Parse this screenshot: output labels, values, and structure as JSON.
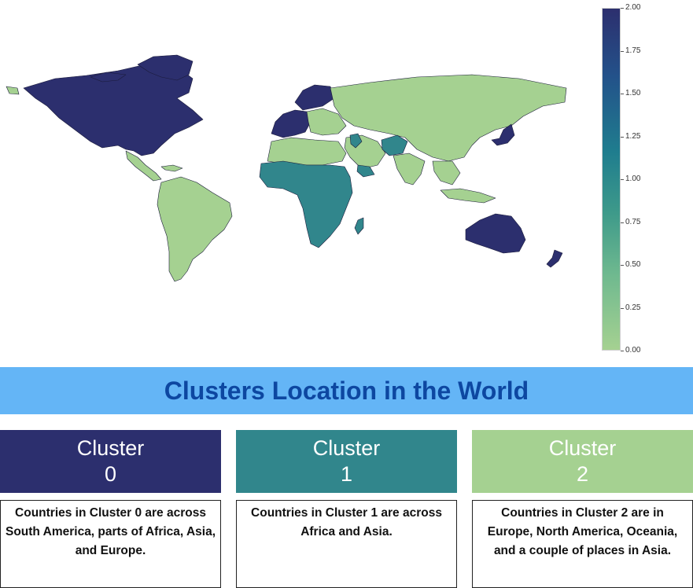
{
  "legend": {
    "ticks": [
      "2.00",
      "1.75",
      "1.50",
      "1.25",
      "1.00",
      "0.75",
      "0.50",
      "0.25",
      "0.00"
    ],
    "scale_min": 0,
    "scale_max": 2,
    "colors": {
      "cluster_0": "#2c2f6e",
      "cluster_1": "#31868c",
      "cluster_2": "#a5d191"
    }
  },
  "banner": {
    "title": "Clusters Location in the World"
  },
  "clusters": [
    {
      "label": "Cluster",
      "number": "0",
      "description": "Countries in Cluster 0 are across South America, parts of Africa, Asia, and Europe."
    },
    {
      "label": "Cluster",
      "number": "1",
      "description": "Countries in Cluster 1 are across Africa and Asia."
    },
    {
      "label": "Cluster",
      "number": "2",
      "description": "Countries in Cluster 2 are in Europe, North America, Oceania, and a couple of places in Asia."
    }
  ]
}
